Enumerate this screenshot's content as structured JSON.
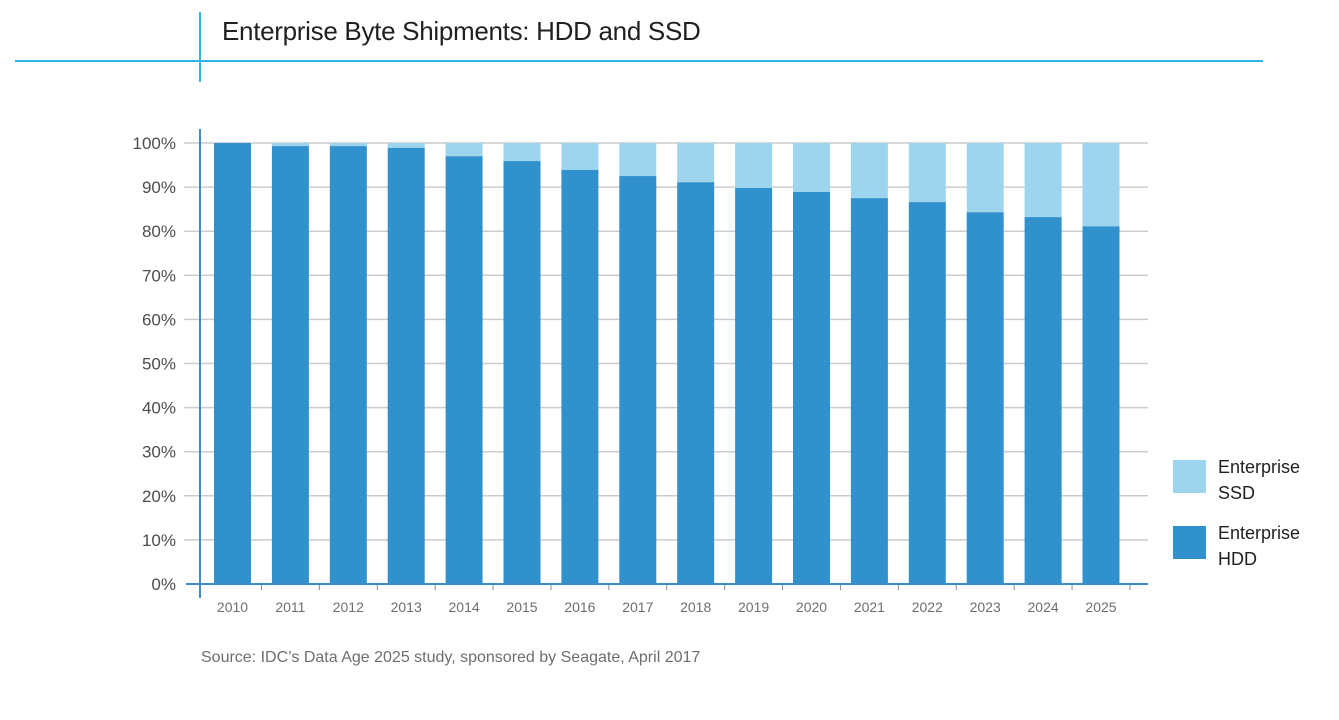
{
  "header": {
    "title": "Enterprise Byte Shipments: HDD and SSD"
  },
  "footer": {
    "source": "Source: IDC’s Data Age 2025 study, sponsored by Seagate, April 2017"
  },
  "colors": {
    "accent_line": "#2DB5E3",
    "ssd": "#9DD5EF",
    "hdd": "#3191CC",
    "axis": "#3D8DC9",
    "grid": "#CCCCCC"
  },
  "legend": {
    "items": [
      {
        "line1": "Enterprise",
        "line2": "SSD",
        "color": "#9DD5EF"
      },
      {
        "line1": "Enterprise",
        "line2": "HDD",
        "color": "#3191CC"
      }
    ]
  },
  "chart_data": {
    "type": "bar",
    "stacked": true,
    "title": "Enterprise Byte Shipments: HDD and SSD",
    "xlabel": "",
    "ylabel": "",
    "ylim": [
      0,
      100
    ],
    "y_ticks": [
      "0%",
      "10%",
      "20%",
      "30%",
      "40%",
      "50%",
      "60%",
      "70%",
      "80%",
      "90%",
      "100%"
    ],
    "grid": true,
    "legend_position": "right",
    "categories": [
      "2010",
      "2011",
      "2012",
      "2013",
      "2014",
      "2015",
      "2016",
      "2017",
      "2018",
      "2019",
      "2020",
      "2021",
      "2022",
      "2023",
      "2024",
      "2025"
    ],
    "series": [
      {
        "name": "Enterprise HDD",
        "values": [
          100,
          99.3,
          99.3,
          98.9,
          97.0,
          95.9,
          93.9,
          92.5,
          91.1,
          89.8,
          88.9,
          87.5,
          86.6,
          84.3,
          83.2,
          81.1
        ]
      },
      {
        "name": "Enterprise SSD",
        "values": [
          0,
          0.7,
          0.7,
          1.1,
          3.0,
          4.1,
          6.1,
          7.5,
          8.9,
          10.2,
          11.1,
          12.5,
          13.4,
          15.7,
          16.8,
          18.9
        ]
      }
    ]
  }
}
